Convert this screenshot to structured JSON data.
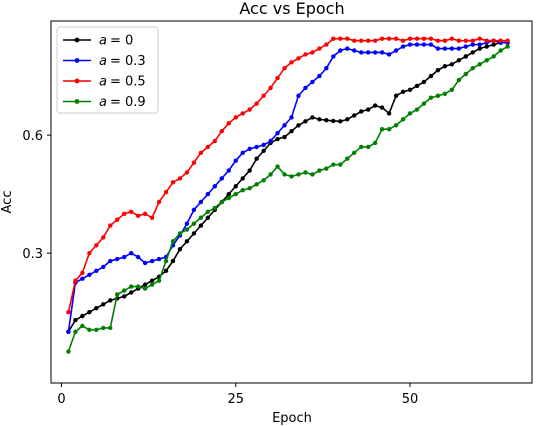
{
  "chart_data": {
    "type": "line",
    "title": "Acc vs Epoch",
    "xlabel": "Epoch",
    "ylabel": "Acc",
    "xlim": [
      -1.5,
      67.5
    ],
    "ylim": [
      -0.03,
      0.89
    ],
    "xticks": [
      0,
      25,
      50
    ],
    "yticks": [
      0.3,
      0.6
    ],
    "ytick_labels": [
      "0.3",
      "0.6"
    ],
    "grid": false,
    "legend_position": "top-left",
    "x": [
      1,
      2,
      3,
      4,
      5,
      6,
      7,
      8,
      9,
      10,
      11,
      12,
      13,
      14,
      15,
      16,
      17,
      18,
      19,
      20,
      21,
      22,
      23,
      24,
      25,
      26,
      27,
      28,
      29,
      30,
      31,
      32,
      33,
      34,
      35,
      36,
      37,
      38,
      39,
      40,
      41,
      42,
      43,
      44,
      45,
      46,
      47,
      48,
      49,
      50,
      51,
      52,
      53,
      54,
      55,
      56,
      57,
      58,
      59,
      60,
      61,
      62,
      63,
      64
    ],
    "series": [
      {
        "name": "a = 0",
        "legend_label": "= 0",
        "color": "#000000",
        "values": [
          0.1,
          0.13,
          0.14,
          0.15,
          0.16,
          0.17,
          0.18,
          0.185,
          0.19,
          0.2,
          0.21,
          0.22,
          0.23,
          0.24,
          0.255,
          0.28,
          0.31,
          0.33,
          0.35,
          0.37,
          0.39,
          0.41,
          0.43,
          0.45,
          0.47,
          0.49,
          0.51,
          0.54,
          0.56,
          0.58,
          0.59,
          0.595,
          0.61,
          0.625,
          0.635,
          0.645,
          0.64,
          0.638,
          0.636,
          0.635,
          0.64,
          0.65,
          0.66,
          0.665,
          0.675,
          0.67,
          0.655,
          0.7,
          0.71,
          0.715,
          0.725,
          0.735,
          0.75,
          0.765,
          0.775,
          0.78,
          0.79,
          0.8,
          0.81,
          0.82,
          0.825,
          0.83,
          0.835,
          0.835
        ]
      },
      {
        "name": "a = 0.3",
        "legend_label": "= 0.3",
        "color": "#0000ff",
        "values": [
          0.1,
          0.225,
          0.235,
          0.245,
          0.255,
          0.265,
          0.28,
          0.285,
          0.29,
          0.3,
          0.29,
          0.275,
          0.28,
          0.285,
          0.29,
          0.32,
          0.345,
          0.375,
          0.41,
          0.43,
          0.45,
          0.47,
          0.49,
          0.51,
          0.535,
          0.555,
          0.565,
          0.57,
          0.575,
          0.585,
          0.605,
          0.625,
          0.645,
          0.7,
          0.72,
          0.735,
          0.75,
          0.77,
          0.8,
          0.815,
          0.82,
          0.815,
          0.81,
          0.81,
          0.81,
          0.81,
          0.805,
          0.815,
          0.825,
          0.83,
          0.83,
          0.83,
          0.83,
          0.82,
          0.82,
          0.82,
          0.82,
          0.825,
          0.83,
          0.83,
          0.835,
          0.84,
          0.835,
          0.835
        ]
      },
      {
        "name": "a = 0.5",
        "legend_label": "= 0.5",
        "color": "#ff0000",
        "values": [
          0.15,
          0.23,
          0.25,
          0.3,
          0.32,
          0.34,
          0.37,
          0.385,
          0.4,
          0.405,
          0.395,
          0.4,
          0.39,
          0.43,
          0.455,
          0.48,
          0.49,
          0.505,
          0.53,
          0.555,
          0.57,
          0.585,
          0.61,
          0.63,
          0.645,
          0.655,
          0.665,
          0.68,
          0.7,
          0.72,
          0.745,
          0.77,
          0.785,
          0.795,
          0.805,
          0.81,
          0.82,
          0.83,
          0.845,
          0.845,
          0.845,
          0.84,
          0.84,
          0.84,
          0.84,
          0.845,
          0.845,
          0.845,
          0.84,
          0.845,
          0.845,
          0.845,
          0.845,
          0.84,
          0.84,
          0.845,
          0.84,
          0.84,
          0.84,
          0.845,
          0.84,
          0.84,
          0.84,
          0.84
        ]
      },
      {
        "name": "a = 0.9",
        "legend_label": "= 0.9",
        "color": "#008000",
        "values": [
          0.05,
          0.1,
          0.115,
          0.105,
          0.105,
          0.11,
          0.11,
          0.195,
          0.205,
          0.215,
          0.215,
          0.21,
          0.22,
          0.23,
          0.28,
          0.33,
          0.35,
          0.36,
          0.375,
          0.39,
          0.405,
          0.415,
          0.43,
          0.44,
          0.45,
          0.46,
          0.465,
          0.475,
          0.485,
          0.5,
          0.52,
          0.5,
          0.495,
          0.5,
          0.505,
          0.5,
          0.51,
          0.515,
          0.525,
          0.525,
          0.54,
          0.555,
          0.57,
          0.57,
          0.58,
          0.615,
          0.615,
          0.625,
          0.64,
          0.655,
          0.665,
          0.68,
          0.695,
          0.7,
          0.705,
          0.715,
          0.74,
          0.755,
          0.77,
          0.78,
          0.79,
          0.8,
          0.815,
          0.825
        ]
      }
    ]
  }
}
